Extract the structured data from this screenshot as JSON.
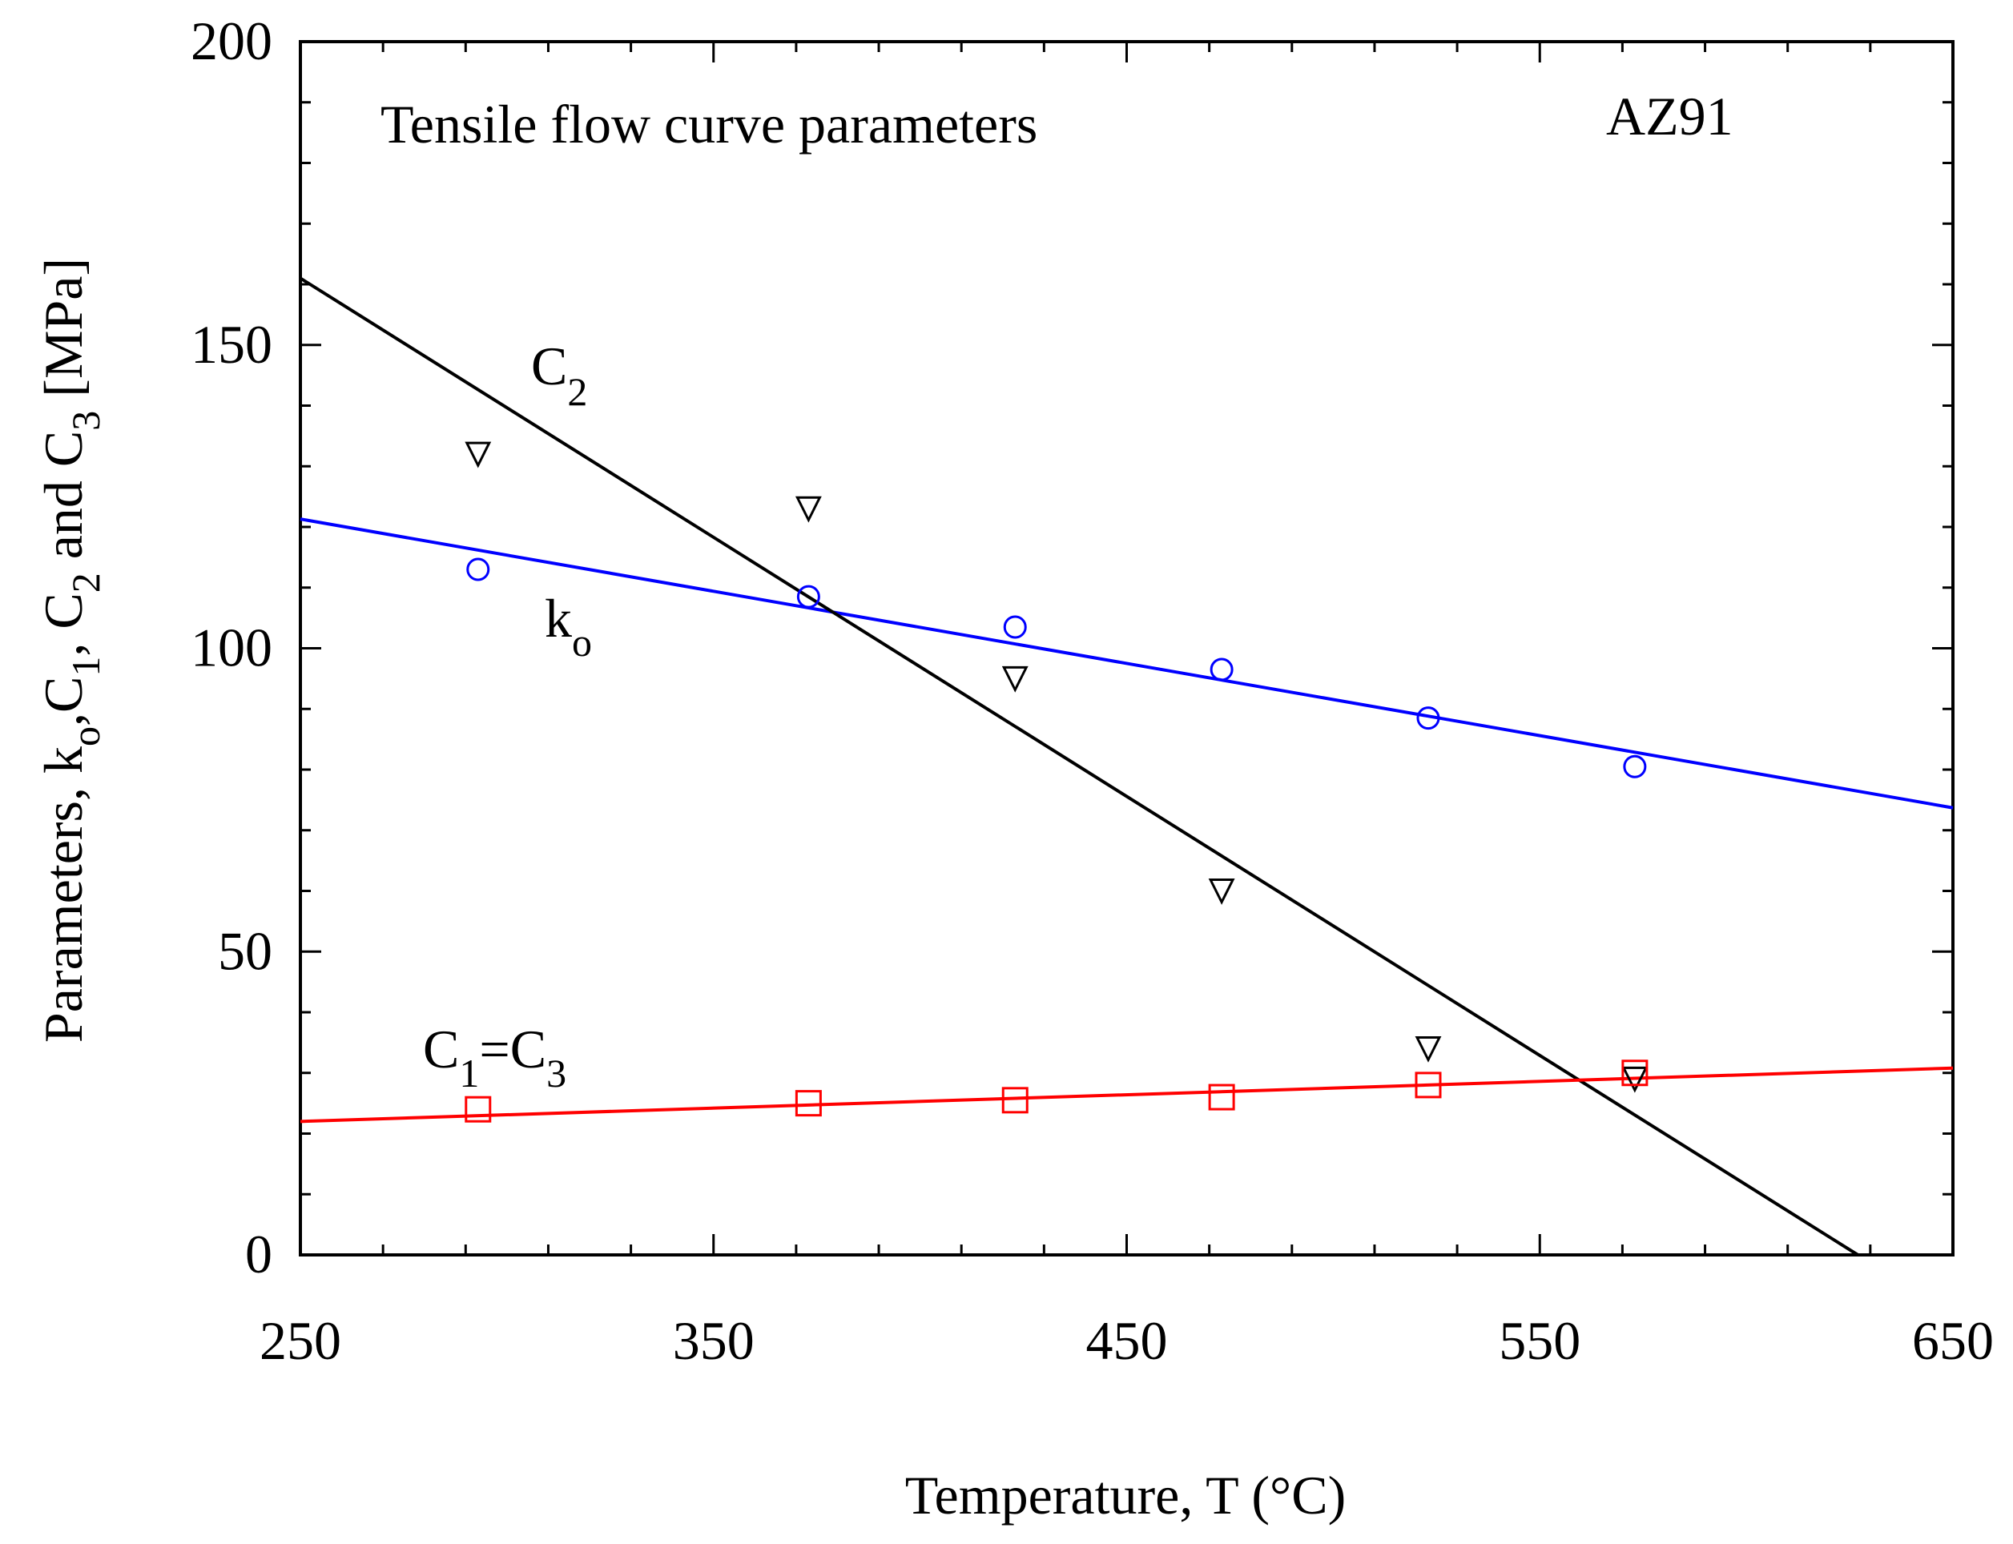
{
  "chart_data": {
    "type": "scatter",
    "title": "Tensile flow curve parameters",
    "material_label": "AZ91",
    "xlabel": "Temperature, T (°C)",
    "ylabel": {
      "prefix": "Parameters, k",
      "sub_o": "o",
      "c1": "C",
      "sub_1": "1",
      "c2": "C",
      "sub_2": "2",
      "and_c3": " and C",
      "sub_3": "3",
      "unit": " [MPa]"
    },
    "xlim": [
      250,
      650
    ],
    "ylim": [
      0,
      200
    ],
    "x_ticks": [
      "250",
      "350",
      "450",
      "550",
      "650"
    ],
    "y_ticks": [
      "0",
      "50",
      "100",
      "150",
      "200"
    ],
    "series": [
      {
        "name": "k_o",
        "marker": "circle",
        "color": "#0000ff",
        "points": [
          [
            293,
            113
          ],
          [
            373,
            108.5
          ],
          [
            423,
            103.5
          ],
          [
            473,
            96.5
          ],
          [
            523,
            88.5
          ],
          [
            573,
            80.5
          ]
        ],
        "fit": [
          [
            250,
            121.3
          ],
          [
            650,
            73.7
          ]
        ]
      },
      {
        "name": "C_2",
        "marker": "triangle-down",
        "color": "#000000",
        "points": [
          [
            293,
            132
          ],
          [
            373,
            123
          ],
          [
            423,
            95
          ],
          [
            473,
            60
          ],
          [
            523,
            34
          ],
          [
            573,
            29
          ]
        ],
        "fit": [
          [
            250,
            161
          ],
          [
            627,
            0
          ]
        ]
      },
      {
        "name": "C_1=C_3",
        "marker": "square",
        "color": "#ff0000",
        "points": [
          [
            293,
            24
          ],
          [
            373,
            25
          ],
          [
            423,
            25.5
          ],
          [
            473,
            26
          ],
          [
            523,
            28
          ],
          [
            573,
            30
          ]
        ],
        "fit": [
          [
            250,
            22
          ],
          [
            650,
            30.8
          ]
        ]
      }
    ],
    "annotations": {
      "c2": {
        "main": "C",
        "sub": "2"
      },
      "ko": {
        "main": "k",
        "sub": "o"
      },
      "c1c3": {
        "main1": "C",
        "sub1": "1",
        "eq": "=C",
        "sub3": "3"
      }
    }
  }
}
